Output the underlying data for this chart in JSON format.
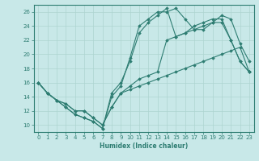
{
  "xlabel": "Humidex (Indice chaleur)",
  "ylabel": "",
  "xlim": [
    -0.5,
    23.5
  ],
  "ylim": [
    9,
    27
  ],
  "yticks": [
    10,
    12,
    14,
    16,
    18,
    20,
    22,
    24,
    26
  ],
  "xticks": [
    0,
    1,
    2,
    3,
    4,
    5,
    6,
    7,
    8,
    9,
    10,
    11,
    12,
    13,
    14,
    15,
    16,
    17,
    18,
    19,
    20,
    21,
    22,
    23
  ],
  "background_color": "#c8e8e8",
  "grid_color": "#add4d0",
  "line_color": "#2e7d72",
  "series": [
    [
      16.0,
      14.5,
      13.5,
      12.5,
      11.5,
      11.0,
      10.5,
      9.5,
      14.0,
      15.5,
      19.5,
      24.0,
      25.0,
      26.0,
      26.0,
      26.5,
      25.0,
      23.5,
      23.5,
      24.5,
      25.5,
      25.0,
      21.5,
      19.0
    ],
    [
      16.0,
      14.5,
      13.5,
      12.5,
      11.5,
      11.0,
      10.5,
      9.5,
      14.5,
      16.0,
      19.0,
      23.0,
      24.5,
      25.5,
      26.5,
      22.5,
      23.0,
      24.0,
      24.5,
      25.0,
      25.0,
      22.0,
      19.0,
      17.5
    ],
    [
      16.0,
      14.5,
      13.5,
      13.0,
      12.0,
      12.0,
      11.0,
      10.0,
      12.5,
      14.5,
      15.5,
      16.5,
      17.0,
      17.5,
      22.0,
      22.5,
      23.0,
      23.5,
      24.0,
      24.5,
      24.5,
      22.0,
      19.0,
      17.5
    ],
    [
      16.0,
      14.5,
      13.5,
      13.0,
      12.0,
      12.0,
      11.0,
      10.0,
      12.5,
      14.5,
      15.0,
      15.5,
      16.0,
      16.5,
      17.0,
      17.5,
      18.0,
      18.5,
      19.0,
      19.5,
      20.0,
      20.5,
      21.0,
      17.5
    ]
  ]
}
